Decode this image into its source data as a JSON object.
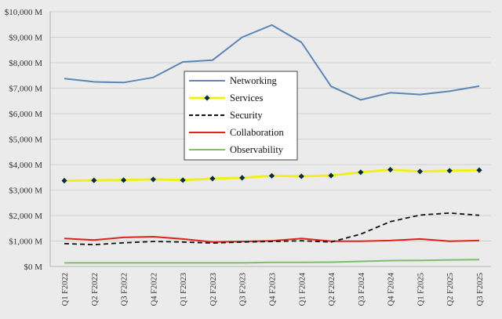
{
  "chart_data": {
    "type": "line",
    "title": "",
    "xlabel": "",
    "ylabel": "",
    "ylim": [
      0,
      10000
    ],
    "ytick_labels": [
      "$0 M",
      "$1,000 M",
      "$2,000 M",
      "$3,000 M",
      "$4,000 M",
      "$5,000 M",
      "$6,000 M",
      "$7,000 M",
      "$8,000 M",
      "$9,000 M",
      "$10,000 M"
    ],
    "categories": [
      "Q1 F2022",
      "Q2 F2022",
      "Q3 F2022",
      "Q4 F2022",
      "Q1 F2023",
      "Q2 F2023",
      "Q3 F2023",
      "Q4 F2023",
      "Q1 F2024",
      "Q2 F2024",
      "Q3 F2024",
      "Q4 F2024",
      "Q1 F2025",
      "Q2 F2025",
      "Q3 F2025"
    ],
    "grid": true,
    "legend_position": "center",
    "series": [
      {
        "name": "Networking",
        "color": "#5b86b5",
        "style": "solid",
        "marker": "none",
        "values": [
          7380,
          7250,
          7220,
          7420,
          8030,
          8100,
          9000,
          9480,
          8800,
          7070,
          6540,
          6820,
          6750,
          6880,
          7080
        ]
      },
      {
        "name": "Services",
        "color": "#f0f01e",
        "style": "solid",
        "marker": "diamond",
        "marker_color": "#0d2b3e",
        "values": [
          3370,
          3380,
          3390,
          3420,
          3390,
          3450,
          3480,
          3560,
          3540,
          3570,
          3700,
          3800,
          3730,
          3760,
          3780
        ]
      },
      {
        "name": "Security",
        "color": "#111111",
        "style": "dashed",
        "marker": "none",
        "values": [
          900,
          860,
          930,
          980,
          960,
          920,
          960,
          980,
          1010,
          960,
          1270,
          1760,
          2020,
          2100,
          2010
        ]
      },
      {
        "name": "Collaboration",
        "color": "#e0231a",
        "style": "solid",
        "marker": "none",
        "values": [
          1100,
          1040,
          1140,
          1170,
          1080,
          960,
          980,
          1010,
          1100,
          990,
          990,
          1020,
          1080,
          990,
          1020
        ]
      },
      {
        "name": "Observability",
        "color": "#7ec06a",
        "style": "solid",
        "marker": "none",
        "values": [
          140,
          140,
          140,
          140,
          140,
          140,
          140,
          160,
          160,
          170,
          200,
          230,
          240,
          260,
          270
        ]
      }
    ]
  }
}
